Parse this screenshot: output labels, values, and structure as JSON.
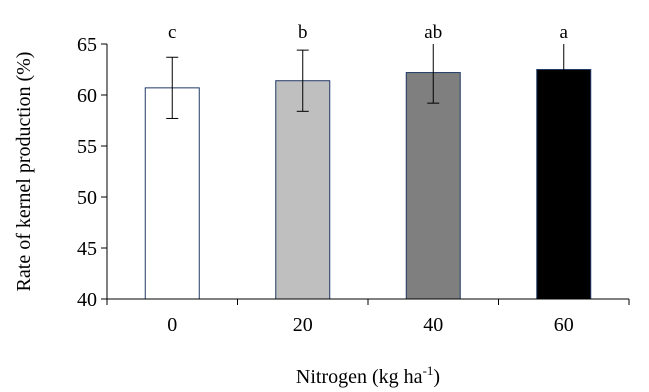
{
  "chart_data": {
    "type": "bar",
    "categories": [
      "0",
      "20",
      "40",
      "60"
    ],
    "values": [
      60.7,
      61.4,
      62.2,
      62.5
    ],
    "errors": [
      3.0,
      3.0,
      3.0,
      3.0
    ],
    "significance_labels": [
      "c",
      "b",
      "ab",
      "a"
    ],
    "bar_colors": [
      "#ffffff",
      "#bfbfbf",
      "#7f7f7f",
      "#000000"
    ],
    "bar_edge_color": "#1f3864",
    "ylabel": "Rate of kernel production (%)",
    "xlabel_main": "Nitrogen (kg ha",
    "xlabel_sup": "-1",
    "xlabel_end": ")",
    "ylim": [
      40,
      65
    ],
    "yticks": [
      40,
      45,
      50,
      55,
      60,
      65
    ],
    "grid": false,
    "legend": "none"
  }
}
